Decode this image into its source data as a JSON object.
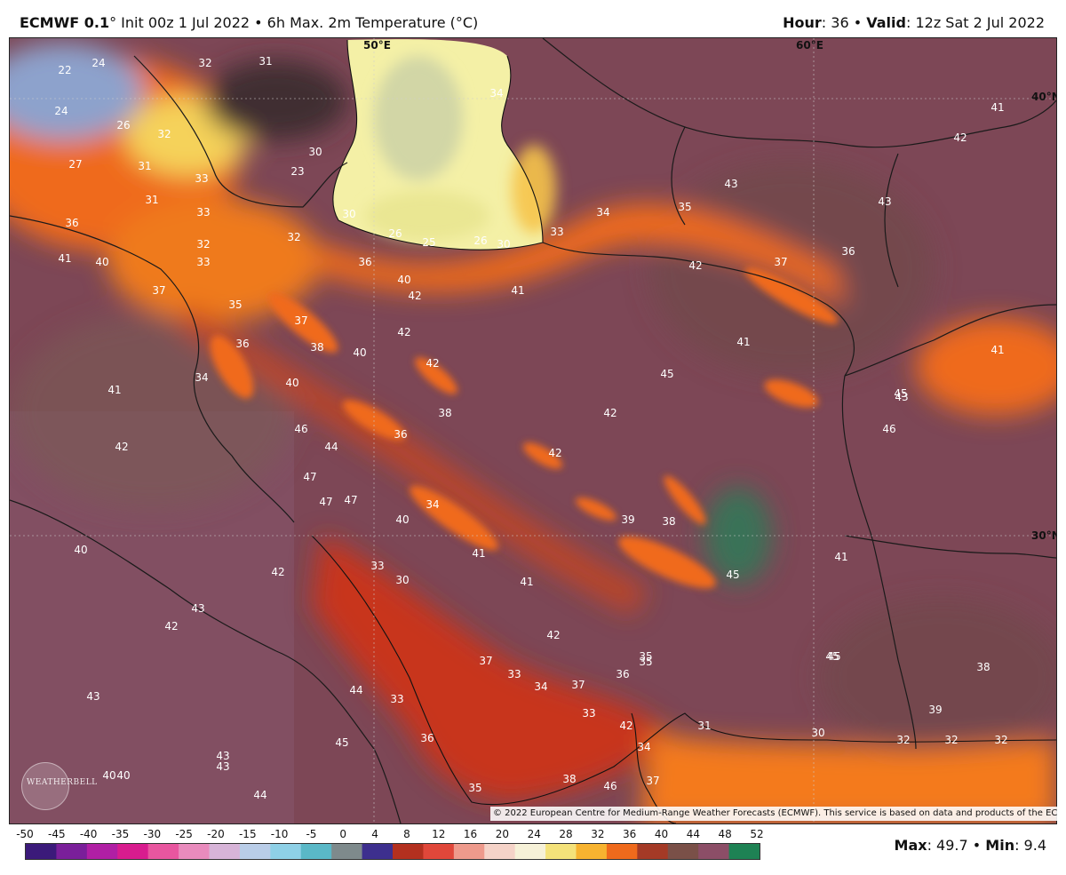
{
  "header": {
    "model": "ECMWF 0.1",
    "deg": "°",
    "init": " Init 00z 1 Jul 2022 • 6h Max. 2m Temperature (°C)",
    "hour_label": "Hour",
    "hour_value": ": 36 • ",
    "valid_label": "Valid",
    "valid_value": ": 12z Sat 2 Jul 2022"
  },
  "grid_labels": [
    {
      "text": "50°E"
    },
    {
      "text": "60°E"
    },
    {
      "text": "40°N"
    },
    {
      "text": "30°N"
    }
  ],
  "map_labels": [
    "22",
    "24",
    "32",
    "31",
    "24",
    "26",
    "32",
    "31",
    "27",
    "33",
    "30",
    "23",
    "34",
    "31",
    "33",
    "32",
    "36",
    "41",
    "40",
    "32",
    "33",
    "36",
    "30",
    "26",
    "25",
    "26",
    "30",
    "33",
    "34",
    "35",
    "43",
    "43",
    "42",
    "41",
    "37",
    "42",
    "37",
    "35",
    "41",
    "42",
    "36",
    "37",
    "38",
    "40",
    "42",
    "40",
    "42",
    "40",
    "34",
    "38",
    "41",
    "41",
    "41",
    "45",
    "46",
    "44",
    "36",
    "42",
    "47",
    "36",
    "47",
    "47",
    "46",
    "45",
    "34",
    "40",
    "42",
    "39",
    "38",
    "41",
    "41",
    "45",
    "33",
    "30",
    "41",
    "40",
    "43",
    "42",
    "37",
    "42",
    "42",
    "35",
    "33",
    "34",
    "37",
    "36",
    "44",
    "45",
    "43",
    "33",
    "35",
    "31",
    "30",
    "33",
    "32",
    "32",
    "32",
    "39",
    "38",
    "45",
    "43",
    "43",
    "40",
    "40",
    "44",
    "46",
    "37",
    "38",
    "35",
    "42",
    "43",
    "42",
    "45",
    "36",
    "34"
  ],
  "copyright": "© 2022 European Centre for Medium-Range Weather Forecasts (ECMWF). This service is based on data and products of the ECMWF.",
  "logo": "WEATHERBELL",
  "colorbar": {
    "ticks": [
      "-50",
      "-45",
      "-40",
      "-35",
      "-30",
      "-25",
      "-20",
      "-15",
      "-10",
      "-5",
      "0",
      "4",
      "8",
      "12",
      "16",
      "20",
      "24",
      "28",
      "32",
      "36",
      "40",
      "44",
      "48",
      "52"
    ],
    "colors": [
      "#3b1a7a",
      "#7a1f9a",
      "#b01fa4",
      "#d81c8e",
      "#e8569f",
      "#e98bbd",
      "#d7b4d8",
      "#b9cde8",
      "#8ed0e6",
      "#5ab8c7",
      "#7e8a8c",
      "#3d2f8e",
      "#b3301f",
      "#e0473a",
      "#ee9a8c",
      "#f5d3c8",
      "#f6f1d8",
      "#f4e27a",
      "#f7b330",
      "#ef6a1c",
      "#a43a26",
      "#7a5048",
      "#8c4e67",
      "#1e8254"
    ]
  },
  "stats": {
    "max_label": "Max",
    "max_value": ": 49.7 • ",
    "min_label": "Min",
    "min_value": ": 9.4"
  },
  "colors": {
    "caspian_cool": "#f4f0a6",
    "hot_band": "#ef6a1c",
    "very_hot": "#7a4554",
    "gulf_sea": "#c8351c",
    "arabian_sea": "#f47a1c",
    "extreme": "#2f7a58"
  }
}
